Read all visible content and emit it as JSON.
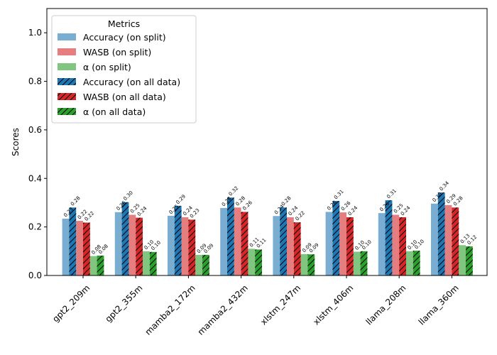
{
  "chart_data": {
    "type": "bar",
    "ylabel": "Scores",
    "ylim": [
      0,
      1.1
    ],
    "yticks": [
      "0.0",
      "0.2",
      "0.4",
      "0.6",
      "0.8",
      "1.0"
    ],
    "categories": [
      "gpt2_209m",
      "gpt2_355m",
      "mamba2_172m",
      "mamba2_432m",
      "xlstm_247m",
      "xlstm_406m",
      "llama_208m",
      "llama_360m"
    ],
    "legend": {
      "title": "Metrics",
      "position": "top-left"
    },
    "series": [
      {
        "name": "Accuracy (on split)",
        "color": "#1f77b4",
        "hatch": false,
        "opacity": 0.6,
        "values": [
          0.234,
          0.261,
          0.246,
          0.278,
          0.245,
          0.262,
          0.257,
          0.296
        ],
        "labels": [
          "0.23",
          "0.26",
          "0.25",
          "0.28",
          "0.24",
          "0.26",
          "0.26",
          "0.30"
        ]
      },
      {
        "name": "Accuracy (on all data)",
        "color": "#1f77b4",
        "hatch": true,
        "opacity": 1,
        "values": [
          0.28,
          0.302,
          0.287,
          0.321,
          0.28,
          0.307,
          0.31,
          0.342
        ],
        "labels": [
          "0.28",
          "0.30",
          "0.29",
          "0.32",
          "0.28",
          "0.31",
          "0.31",
          "0.34"
        ]
      },
      {
        "name": "WASB (on split)",
        "color": "#d62728",
        "hatch": false,
        "opacity": 0.6,
        "values": [
          0.225,
          0.25,
          0.24,
          0.28,
          0.24,
          0.26,
          0.25,
          0.29
        ],
        "labels": [
          "0.22",
          "0.25",
          "0.24",
          "0.28",
          "0.24",
          "0.26",
          "0.25",
          "0.29"
        ]
      },
      {
        "name": "WASB (on all data)",
        "color": "#d62728",
        "hatch": true,
        "opacity": 1,
        "values": [
          0.218,
          0.238,
          0.23,
          0.262,
          0.219,
          0.24,
          0.24,
          0.28
        ],
        "labels": [
          "0.22",
          "0.24",
          "0.23",
          "0.26",
          "0.22",
          "0.24",
          "0.24",
          "0.28"
        ]
      },
      {
        "name": "α (on split)",
        "color": "#2ca02c",
        "hatch": false,
        "opacity": 0.6,
        "values": [
          0.08,
          0.1,
          0.085,
          0.11,
          0.088,
          0.098,
          0.1,
          0.125
        ],
        "labels": [
          "0.08",
          "0.10",
          "0.09",
          "0.11",
          "0.09",
          "0.10",
          "0.10",
          "0.13"
        ]
      },
      {
        "name": "α (on all data)",
        "color": "#2ca02c",
        "hatch": true,
        "opacity": 1,
        "values": [
          0.082,
          0.097,
          0.085,
          0.107,
          0.087,
          0.1,
          0.102,
          0.12
        ],
        "labels": [
          "0.08",
          "0.10",
          "0.09",
          "0.11",
          "0.09",
          "0.10",
          "0.10",
          "0.12"
        ]
      }
    ],
    "legend_order": [
      0,
      2,
      4,
      1,
      3,
      5
    ],
    "grid": false
  }
}
